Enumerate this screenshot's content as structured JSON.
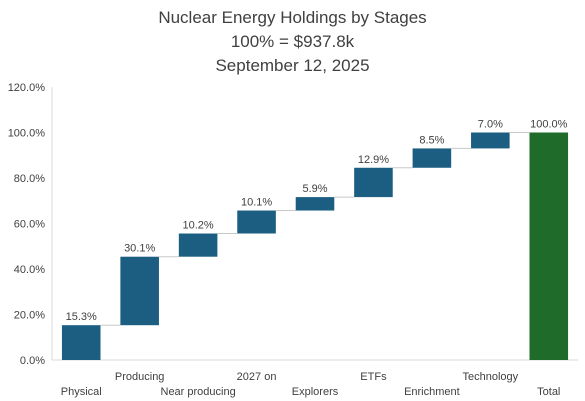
{
  "chart_data": {
    "type": "bar",
    "subtype": "waterfall",
    "title": "Nuclear Energy Holdings by Stages",
    "subtitle": "100% =  $937.8k",
    "date": "September 12, 2025",
    "categories": [
      "Physical",
      "Producing",
      "Near producing",
      "2027 on",
      "Explorers",
      "ETFs",
      "Enrichment",
      "Technology",
      "Total"
    ],
    "values": [
      15.3,
      30.1,
      10.2,
      10.1,
      5.9,
      12.9,
      8.5,
      7.0,
      100.0
    ],
    "data_labels": [
      "15.3%",
      "30.1%",
      "10.2%",
      "10.1%",
      "5.9%",
      "12.9%",
      "8.5%",
      "7.0%",
      "100.0%"
    ],
    "ylim": [
      0,
      120
    ],
    "yticks": [
      "0.0%",
      "20.0%",
      "40.0%",
      "60.0%",
      "80.0%",
      "100.0%",
      "120.0%"
    ],
    "xlabel": "",
    "ylabel": "",
    "grid": false,
    "legend": "none",
    "colors": {
      "step": "#1b5e82",
      "total": "#1e6b2a",
      "connector": "#c8c8c8",
      "axis": "#d9d9d9"
    }
  }
}
